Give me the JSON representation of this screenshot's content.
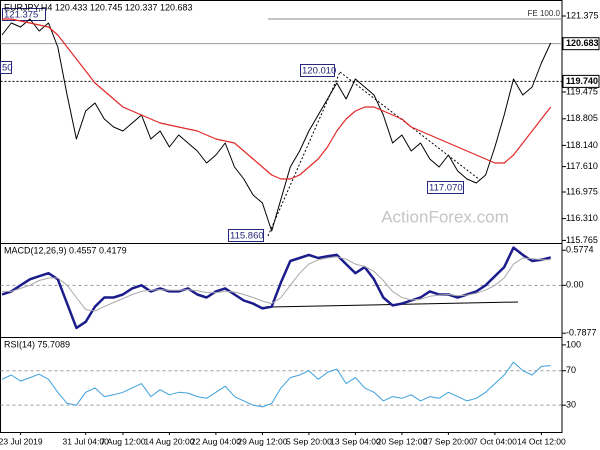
{
  "chart_data": [
    {
      "type": "line",
      "title": "EURJPY,H4  120.433 120.745 120.337 120.683",
      "watermark": "ActionForex.com",
      "ylim": [
        115.7,
        121.65
      ],
      "yticks": [
        121.375,
        119.475,
        118.805,
        {
          "value": 118.14,
          "label": "118.140"
        },
        {
          "value": 117.61,
          "label": "117.610"
        },
        116.975,
        {
          "value": 116.31,
          "label": "116.310"
        },
        115.765
      ],
      "grid": false,
      "levels": [
        {
          "value": 121.3,
          "label": "FE 100.0"
        },
        {
          "value": 120.683,
          "label": "120.683"
        },
        {
          "value": 119.74,
          "label": "119.740"
        }
      ],
      "annotations": [
        "121.375",
        "120.010",
        "115.860",
        "117.070",
        "50"
      ],
      "series": [
        {
          "name": "Price",
          "color": "#000000",
          "values": [
            120.9,
            121.2,
            121.1,
            121.3,
            121.0,
            121.2,
            120.6,
            119.4,
            118.3,
            119.0,
            119.2,
            118.8,
            118.6,
            118.5,
            118.7,
            118.9,
            118.3,
            118.5,
            118.1,
            118.4,
            118.2,
            118.0,
            117.7,
            117.9,
            118.2,
            117.6,
            117.3,
            116.9,
            116.7,
            116.0,
            116.8,
            117.6,
            118.0,
            118.5,
            118.9,
            119.3,
            119.7,
            119.3,
            119.8,
            119.6,
            119.4,
            118.9,
            118.2,
            118.4,
            118.0,
            118.2,
            117.8,
            117.6,
            117.9,
            117.5,
            117.3,
            117.2,
            117.4,
            118.1,
            118.9,
            119.8,
            119.4,
            119.6,
            120.2,
            120.7
          ]
        },
        {
          "name": "MA",
          "color": "#e02828",
          "values": [
            121.3,
            121.3,
            121.25,
            121.2,
            121.15,
            121.1,
            120.9,
            120.6,
            120.3,
            120.0,
            119.7,
            119.5,
            119.3,
            119.1,
            119.0,
            118.9,
            118.8,
            118.7,
            118.65,
            118.6,
            118.55,
            118.5,
            118.4,
            118.3,
            118.25,
            118.2,
            118.0,
            117.8,
            117.6,
            117.4,
            117.3,
            117.3,
            117.4,
            117.6,
            117.8,
            118.1,
            118.5,
            118.8,
            119.0,
            119.1,
            119.1,
            119.0,
            118.9,
            118.8,
            118.6,
            118.5,
            118.4,
            118.3,
            118.2,
            118.1,
            118.0,
            117.9,
            117.8,
            117.7,
            117.7,
            117.9,
            118.2,
            118.5,
            118.8,
            119.1
          ]
        }
      ]
    },
    {
      "type": "line",
      "title": "MACD(12,26,9) 0.4557 0.4179",
      "ylim": [
        -0.85,
        0.68
      ],
      "yticks": [
        0.5774,
        {
          "value": 0,
          "label": "0.00"
        },
        -0.7877
      ],
      "grid": true,
      "series": [
        {
          "name": "MACD",
          "color": "#1c1c8c",
          "values": [
            -0.15,
            -0.1,
            0.0,
            0.1,
            0.15,
            0.2,
            0.1,
            -0.3,
            -0.7,
            -0.6,
            -0.35,
            -0.2,
            -0.2,
            -0.15,
            -0.05,
            0.0,
            -0.1,
            -0.05,
            -0.1,
            -0.1,
            -0.05,
            -0.15,
            -0.2,
            -0.1,
            -0.05,
            -0.15,
            -0.25,
            -0.3,
            -0.38,
            -0.35,
            0.05,
            0.4,
            0.45,
            0.5,
            0.45,
            0.48,
            0.5,
            0.35,
            0.2,
            0.3,
            0.1,
            -0.2,
            -0.33,
            -0.3,
            -0.25,
            -0.2,
            -0.1,
            -0.15,
            -0.15,
            -0.2,
            -0.15,
            -0.1,
            0.0,
            0.15,
            0.3,
            0.62,
            0.5,
            0.4,
            0.42,
            0.46
          ]
        },
        {
          "name": "Signal",
          "color": "#a8a8a8",
          "values": [
            -0.1,
            -0.1,
            -0.05,
            0.0,
            0.08,
            0.12,
            0.12,
            0.0,
            -0.2,
            -0.4,
            -0.42,
            -0.35,
            -0.28,
            -0.22,
            -0.15,
            -0.1,
            -0.08,
            -0.07,
            -0.08,
            -0.08,
            -0.07,
            -0.09,
            -0.12,
            -0.12,
            -0.1,
            -0.11,
            -0.15,
            -0.2,
            -0.26,
            -0.3,
            -0.2,
            0.0,
            0.2,
            0.35,
            0.42,
            0.45,
            0.47,
            0.43,
            0.35,
            0.31,
            0.23,
            0.08,
            -0.1,
            -0.2,
            -0.24,
            -0.23,
            -0.18,
            -0.16,
            -0.15,
            -0.17,
            -0.16,
            -0.13,
            -0.08,
            0.0,
            0.12,
            0.35,
            0.45,
            0.44,
            0.42,
            0.42
          ]
        }
      ]
    },
    {
      "type": "line",
      "title": "RSI(14) 75.7089",
      "ylim": [
        0,
        108
      ],
      "yticks": [
        100,
        70,
        30
      ],
      "grid": true,
      "categories": [
        null,
        null,
        "23 Jul 2019",
        null,
        null,
        null,
        null,
        null,
        null,
        "31 Jul 04:00",
        null,
        null,
        null,
        "7 Aug 12:00",
        null,
        null,
        null,
        null,
        "14 Aug 20:00",
        null,
        null,
        null,
        null,
        "22 Aug 04:00",
        null,
        null,
        null,
        null,
        "29 Aug 12:00",
        null,
        null,
        null,
        null,
        "5 Sep 20:00",
        null,
        null,
        null,
        null,
        "13 Sep 04:00",
        null,
        null,
        null,
        null,
        "20 Sep 12:00",
        null,
        null,
        null,
        null,
        "27 Sep 20:00",
        null,
        null,
        null,
        null,
        "7 Oct 04:00",
        null,
        null,
        null,
        null,
        "14 Oct 12:00",
        null
      ],
      "series": [
        {
          "name": "RSI",
          "color": "#3fa0dc",
          "values": [
            60,
            65,
            58,
            62,
            66,
            60,
            45,
            32,
            30,
            45,
            50,
            40,
            42,
            45,
            50,
            55,
            40,
            48,
            42,
            45,
            44,
            40,
            38,
            45,
            52,
            40,
            35,
            30,
            28,
            32,
            50,
            62,
            65,
            70,
            60,
            68,
            72,
            55,
            62,
            50,
            45,
            35,
            40,
            38,
            42,
            35,
            40,
            38,
            45,
            40,
            35,
            38,
            45,
            55,
            65,
            80,
            70,
            65,
            75,
            76
          ]
        }
      ]
    }
  ]
}
